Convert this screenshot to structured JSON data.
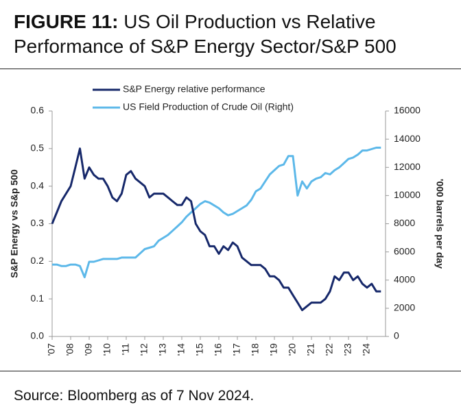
{
  "chart_data": {
    "type": "line",
    "figure_label": "FIGURE 11:",
    "title": "US Oil Production vs Relative Performance of S&P Energy Sector/S&P 500",
    "source": "Source: Bloomberg as of 7 Nov 2024.",
    "ylabel": "S&P Energy vs S&p 500",
    "y2label": "'000 barrels per day",
    "legend": "top",
    "x": [
      2007,
      2007.25,
      2007.5,
      2007.75,
      2008,
      2008.25,
      2008.5,
      2008.75,
      2009,
      2009.25,
      2009.5,
      2009.75,
      2010,
      2010.25,
      2010.5,
      2010.75,
      2011,
      2011.25,
      2011.5,
      2011.75,
      2012,
      2012.25,
      2012.5,
      2012.75,
      2013,
      2013.25,
      2013.5,
      2013.75,
      2014,
      2014.25,
      2014.5,
      2014.75,
      2015,
      2015.25,
      2015.5,
      2015.75,
      2016,
      2016.25,
      2016.5,
      2016.75,
      2017,
      2017.25,
      2017.5,
      2017.75,
      2018,
      2018.25,
      2018.5,
      2018.75,
      2019,
      2019.25,
      2019.5,
      2019.75,
      2020,
      2020.25,
      2020.5,
      2020.75,
      2021,
      2021.25,
      2021.5,
      2021.75,
      2022,
      2022.25,
      2022.5,
      2022.75,
      2023,
      2023.25,
      2023.5,
      2023.75,
      2024,
      2024.25,
      2024.5,
      2024.75
    ],
    "series": [
      {
        "name": "S&P Energy relative performance",
        "color": "#16286a",
        "axis": "y",
        "values": [
          0.3,
          0.33,
          0.36,
          0.38,
          0.4,
          0.45,
          0.5,
          0.42,
          0.45,
          0.43,
          0.42,
          0.42,
          0.4,
          0.37,
          0.36,
          0.38,
          0.43,
          0.44,
          0.42,
          0.41,
          0.4,
          0.37,
          0.38,
          0.38,
          0.38,
          0.37,
          0.36,
          0.35,
          0.35,
          0.37,
          0.36,
          0.3,
          0.28,
          0.27,
          0.24,
          0.24,
          0.22,
          0.24,
          0.23,
          0.25,
          0.24,
          0.21,
          0.2,
          0.19,
          0.19,
          0.19,
          0.18,
          0.16,
          0.16,
          0.15,
          0.13,
          0.13,
          0.11,
          0.09,
          0.07,
          0.08,
          0.09,
          0.09,
          0.09,
          0.1,
          0.12,
          0.16,
          0.15,
          0.17,
          0.17,
          0.15,
          0.16,
          0.14,
          0.13,
          0.14,
          0.12,
          0.12
        ]
      },
      {
        "name": "US Field Production of Crude Oil (Right)",
        "color": "#5cb8e9",
        "axis": "y2",
        "values": [
          5100,
          5100,
          5000,
          5000,
          5100,
          5100,
          5000,
          4200,
          5300,
          5300,
          5400,
          5500,
          5500,
          5500,
          5500,
          5600,
          5600,
          5600,
          5600,
          5900,
          6200,
          6300,
          6400,
          6800,
          7000,
          7200,
          7500,
          7800,
          8100,
          8500,
          8800,
          9100,
          9400,
          9600,
          9500,
          9300,
          9100,
          8800,
          8600,
          8700,
          8900,
          9100,
          9300,
          9700,
          10300,
          10500,
          11000,
          11500,
          11800,
          12100,
          12200,
          12800,
          12800,
          10000,
          11000,
          10500,
          11000,
          11200,
          11300,
          11600,
          11500,
          11800,
          12000,
          12300,
          12600,
          12700,
          12900,
          13200,
          13200,
          13300,
          13400,
          13400
        ]
      }
    ],
    "xlim": [
      2007,
      2025
    ],
    "xticks": [
      {
        "value": 2007,
        "label": "'07"
      },
      {
        "value": 2008,
        "label": "'08"
      },
      {
        "value": 2009,
        "label": "'09"
      },
      {
        "value": 2010,
        "label": "'10"
      },
      {
        "value": 2011,
        "label": "'11"
      },
      {
        "value": 2012,
        "label": "'12"
      },
      {
        "value": 2013,
        "label": "'13"
      },
      {
        "value": 2014,
        "label": "'14"
      },
      {
        "value": 2015,
        "label": "'15"
      },
      {
        "value": 2016,
        "label": "'16"
      },
      {
        "value": 2017,
        "label": "'17"
      },
      {
        "value": 2018,
        "label": "'18"
      },
      {
        "value": 2019,
        "label": "'19"
      },
      {
        "value": 2020,
        "label": "'20"
      },
      {
        "value": 2021,
        "label": "'21"
      },
      {
        "value": 2022,
        "label": "'22"
      },
      {
        "value": 2023,
        "label": "'23"
      },
      {
        "value": 2024,
        "label": "'24"
      }
    ],
    "ylim": [
      0,
      0.6
    ],
    "yticks": [
      {
        "value": 0,
        "label": "0.0"
      },
      0.1,
      0.2,
      0.3,
      0.4,
      0.5,
      0.6
    ],
    "y2lim": [
      0,
      16000
    ],
    "y2ticks": [
      0,
      2000,
      4000,
      6000,
      8000,
      10000,
      12000,
      14000,
      16000
    ]
  }
}
